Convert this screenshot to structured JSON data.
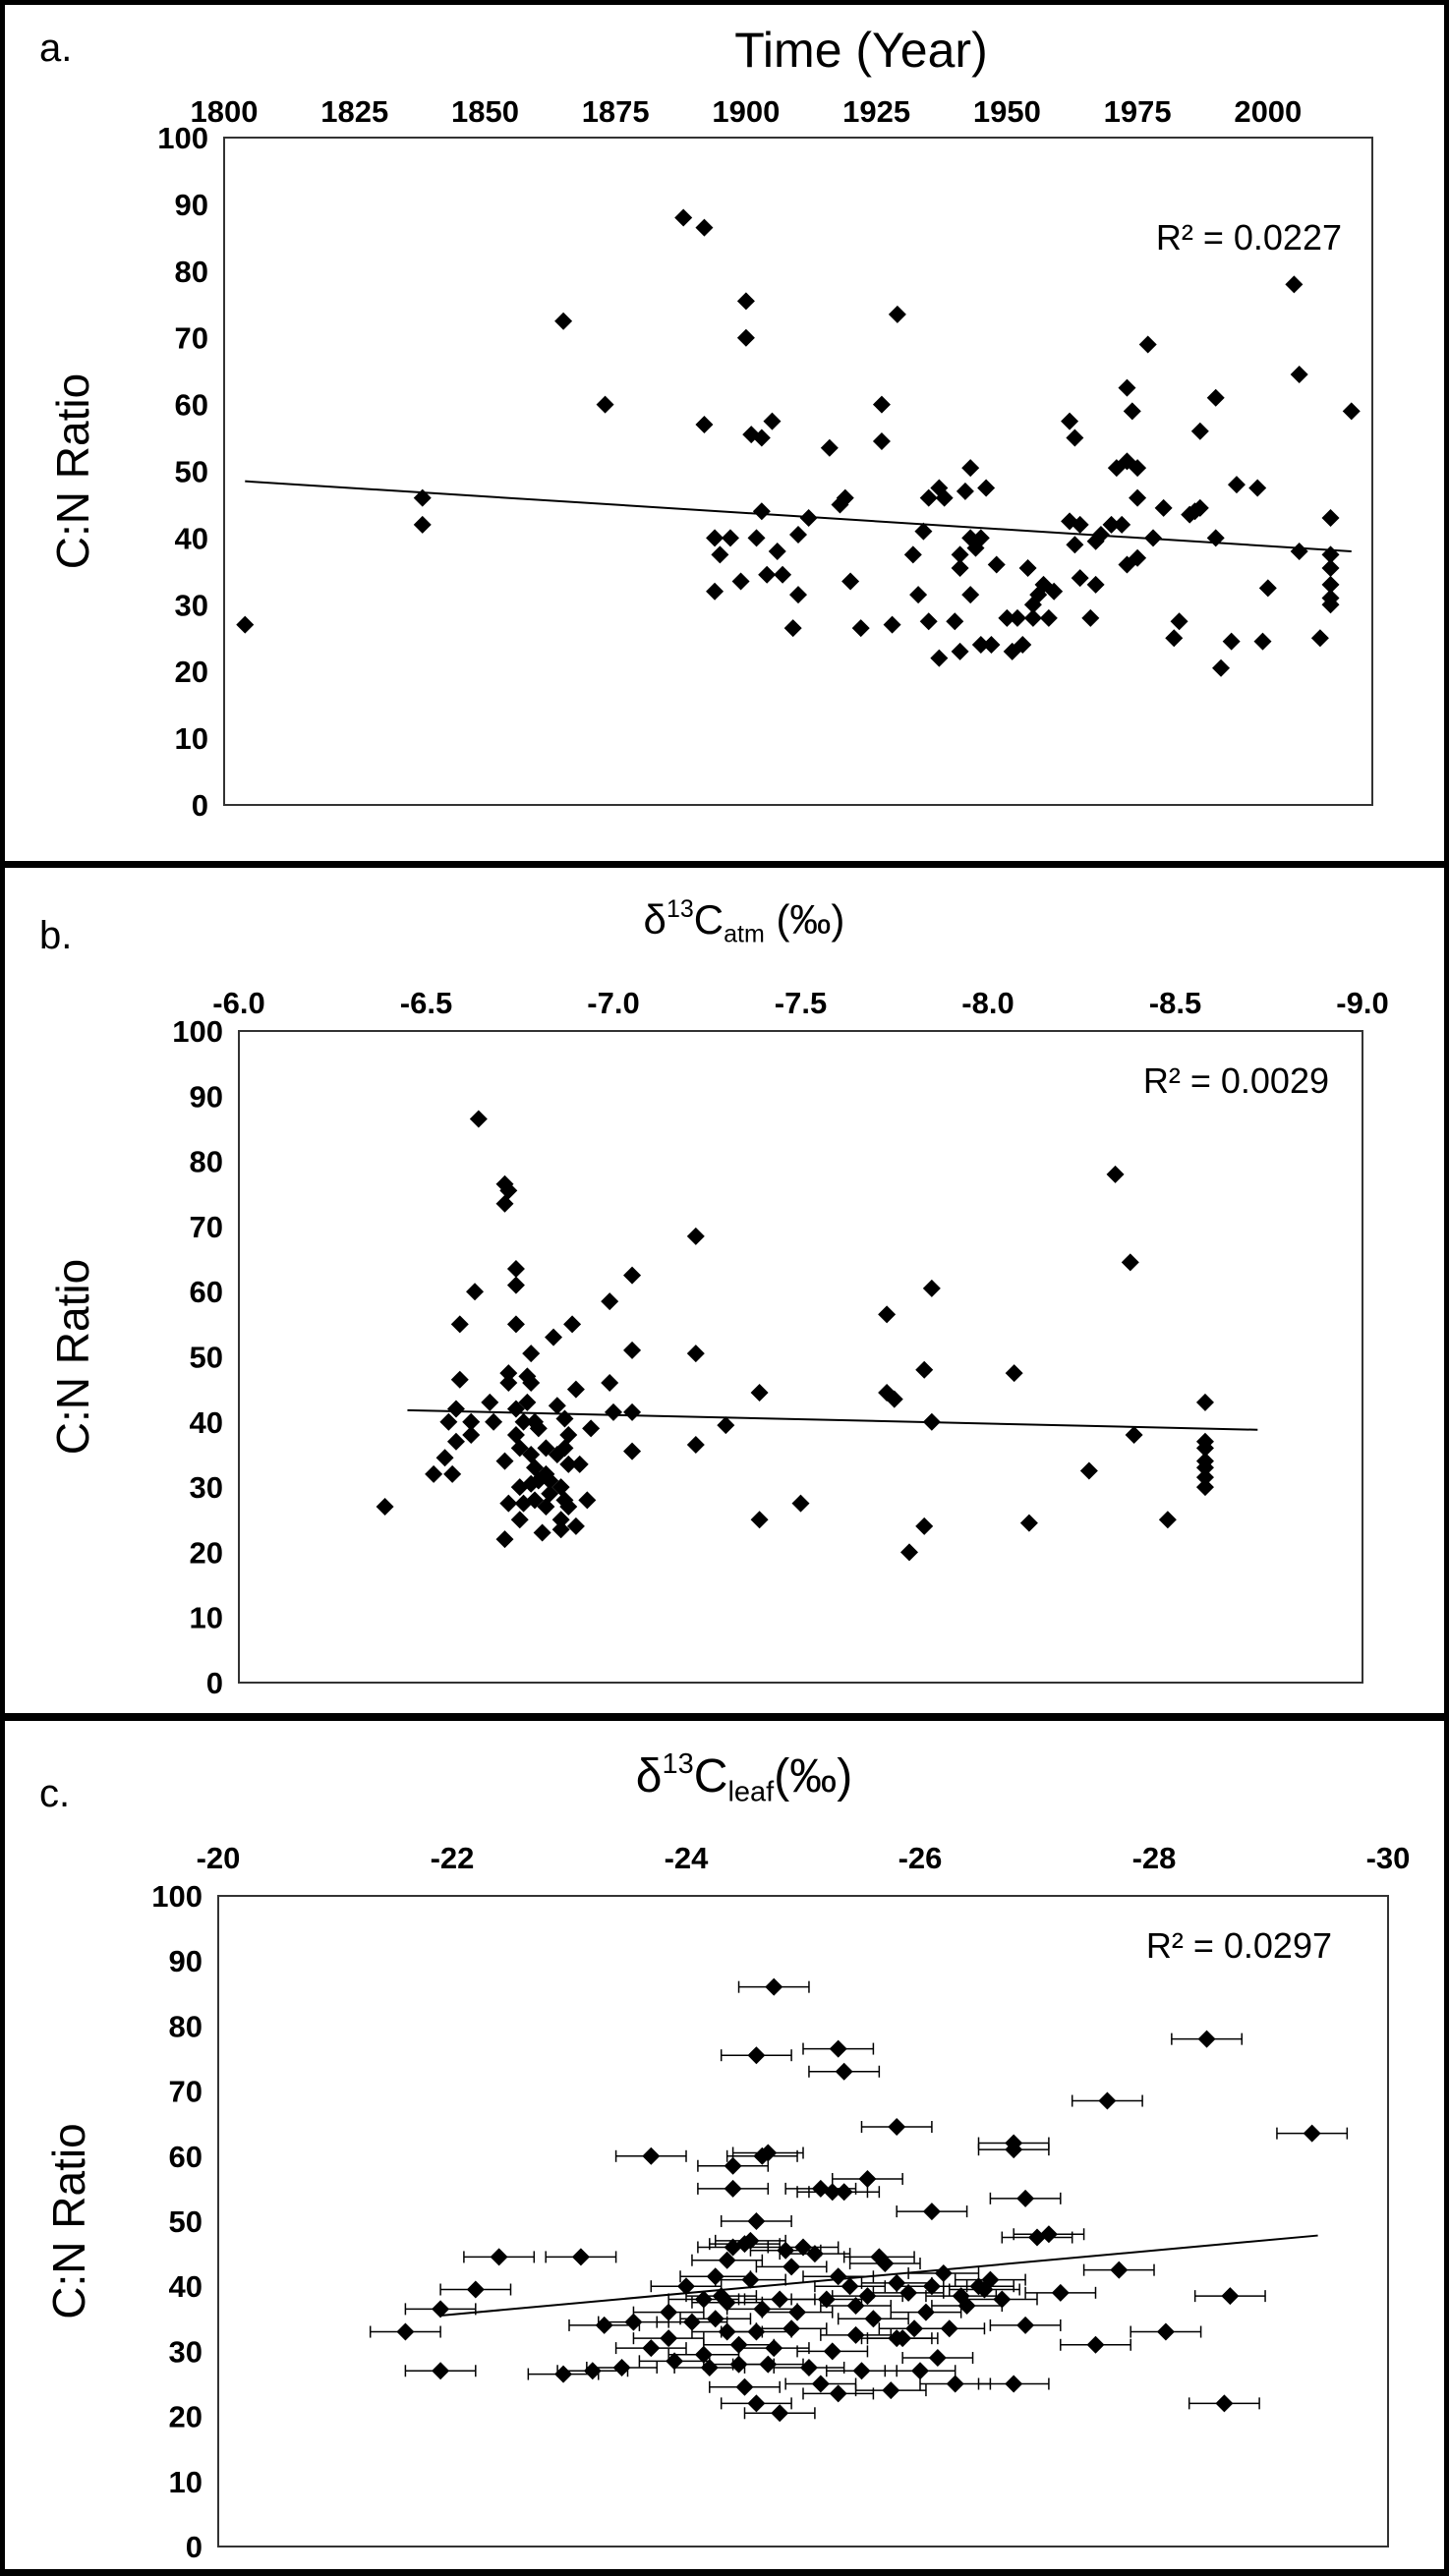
{
  "chart_data": [
    {
      "type": "scatter",
      "panel_label": "a.",
      "title": "Time (Year)",
      "xlabel": "",
      "ylabel": "C:N Ratio",
      "xlim": [
        1800,
        2020
      ],
      "ylim": [
        0,
        100
      ],
      "x_ticks": [
        "1800",
        "1825",
        "1850",
        "1875",
        "1900",
        "1925",
        "1950",
        "1975",
        "2000"
      ],
      "y_ticks": [
        "0",
        "10",
        "20",
        "30",
        "40",
        "50",
        "60",
        "70",
        "80",
        "90",
        "100"
      ],
      "axis_position": "top",
      "grid": false,
      "trendline": {
        "x": [
          1804,
          2016
        ],
        "y": [
          48.5,
          38.0
        ]
      },
      "r2": "R² = 0.0227",
      "points": [
        [
          1804,
          27
        ],
        [
          1838,
          46
        ],
        [
          1838,
          42
        ],
        [
          1865,
          72.5
        ],
        [
          1873,
          60
        ],
        [
          1888,
          88
        ],
        [
          1892,
          86.5
        ],
        [
          1892,
          57
        ],
        [
          1894,
          32
        ],
        [
          1895,
          37.5
        ],
        [
          1894,
          40
        ],
        [
          1897,
          40
        ],
        [
          1899,
          33.5
        ],
        [
          1900,
          75.5
        ],
        [
          1900,
          70
        ],
        [
          1901,
          55.5
        ],
        [
          1902,
          40
        ],
        [
          1903,
          55
        ],
        [
          1903,
          44
        ],
        [
          1904,
          34.5
        ],
        [
          1905,
          57.5
        ],
        [
          1906,
          38
        ],
        [
          1907,
          34.5
        ],
        [
          1909,
          26.5
        ],
        [
          1910,
          31.5
        ],
        [
          1910,
          40.5
        ],
        [
          1912,
          43
        ],
        [
          1916,
          53.5
        ],
        [
          1918,
          45
        ],
        [
          1919,
          46
        ],
        [
          1920,
          33.5
        ],
        [
          1922,
          26.5
        ],
        [
          1926,
          54.5
        ],
        [
          1926,
          60
        ],
        [
          1928,
          27
        ],
        [
          1929,
          73.5
        ],
        [
          1932,
          37.5
        ],
        [
          1933,
          31.5
        ],
        [
          1934,
          41
        ],
        [
          1935,
          27.5
        ],
        [
          1935,
          46
        ],
        [
          1937,
          47.5
        ],
        [
          1937,
          22
        ],
        [
          1938,
          46
        ],
        [
          1940,
          27.5
        ],
        [
          1941,
          37.5
        ],
        [
          1941,
          35.5
        ],
        [
          1941,
          23
        ],
        [
          1942,
          47
        ],
        [
          1943,
          40
        ],
        [
          1943,
          31.5
        ],
        [
          1943,
          50.5
        ],
        [
          1944,
          38.5
        ],
        [
          1945,
          24
        ],
        [
          1945,
          40
        ],
        [
          1946,
          47.5
        ],
        [
          1947,
          24
        ],
        [
          1948,
          36
        ],
        [
          1950,
          28
        ],
        [
          1951,
          23
        ],
        [
          1952,
          28
        ],
        [
          1953,
          24
        ],
        [
          1954,
          35.5
        ],
        [
          1955,
          28
        ],
        [
          1955,
          30
        ],
        [
          1956,
          31.5
        ],
        [
          1957,
          33
        ],
        [
          1958,
          28
        ],
        [
          1959,
          32
        ],
        [
          1962,
          57.5
        ],
        [
          1962,
          42.5
        ],
        [
          1963,
          55
        ],
        [
          1963,
          39
        ],
        [
          1964,
          34
        ],
        [
          1964,
          42
        ],
        [
          1966,
          28
        ],
        [
          1967,
          33
        ],
        [
          1967,
          39.5
        ],
        [
          1968,
          40.5
        ],
        [
          1970,
          42
        ],
        [
          1971,
          50.5
        ],
        [
          1972,
          42
        ],
        [
          1973,
          62.5
        ],
        [
          1973,
          51.5
        ],
        [
          1973,
          36
        ],
        [
          1974,
          59
        ],
        [
          1975,
          50.5
        ],
        [
          1975,
          46
        ],
        [
          1975,
          37
        ],
        [
          1977,
          69
        ],
        [
          1978,
          40
        ],
        [
          1980,
          44.5
        ],
        [
          1982,
          25
        ],
        [
          1983,
          27.5
        ],
        [
          1985,
          43.5
        ],
        [
          1986,
          44
        ],
        [
          1987,
          56
        ],
        [
          1987,
          44.5
        ],
        [
          1990,
          61
        ],
        [
          1990,
          40
        ],
        [
          1991,
          20.5
        ],
        [
          1993,
          24.5
        ],
        [
          1994,
          48
        ],
        [
          1998,
          47.5
        ],
        [
          1999,
          24.5
        ],
        [
          2000,
          32.5
        ],
        [
          2005,
          78
        ],
        [
          2006,
          64.5
        ],
        [
          2006,
          38
        ],
        [
          2010,
          25
        ],
        [
          2012,
          43
        ],
        [
          2012,
          37.5
        ],
        [
          2012,
          35.5
        ],
        [
          2012,
          33
        ],
        [
          2012,
          31
        ],
        [
          2012,
          30
        ],
        [
          2016,
          59
        ]
      ]
    },
    {
      "type": "scatter",
      "panel_label": "b.",
      "title_main": "δ",
      "title_sup": "13",
      "title_c": "C",
      "title_sub": "atm",
      "title_tail": " (‰)",
      "xlabel": "",
      "ylabel": "C:N Ratio",
      "xlim": [
        -6.0,
        -9.0
      ],
      "ylim": [
        0,
        100
      ],
      "x_ticks": [
        "-6.0",
        "-6.5",
        "-7.0",
        "-7.5",
        "-8.0",
        "-8.5",
        "-9.0"
      ],
      "y_ticks": [
        "0",
        "10",
        "20",
        "30",
        "40",
        "50",
        "60",
        "70",
        "80",
        "90",
        "100"
      ],
      "axis_position": "top",
      "grid": false,
      "trendline": {
        "x": [
          -6.45,
          -8.72
        ],
        "y": [
          41.8,
          38.8
        ]
      },
      "r2": "R² = 0.0029",
      "points": [
        [
          -6.39,
          27
        ],
        [
          -6.52,
          32
        ],
        [
          -6.57,
          32
        ],
        [
          -6.55,
          34.5
        ],
        [
          -6.56,
          40
        ],
        [
          -6.58,
          37
        ],
        [
          -6.58,
          42
        ],
        [
          -6.59,
          46.5
        ],
        [
          -6.59,
          55
        ],
        [
          -6.62,
          40
        ],
        [
          -6.64,
          86.5
        ],
        [
          -6.63,
          60
        ],
        [
          -6.62,
          38
        ],
        [
          -6.67,
          43
        ],
        [
          -6.68,
          40
        ],
        [
          -6.71,
          76.5
        ],
        [
          -6.71,
          73.5
        ],
        [
          -6.72,
          75.5
        ],
        [
          -6.72,
          47.5
        ],
        [
          -6.72,
          46
        ],
        [
          -6.71,
          34
        ],
        [
          -6.72,
          27.5
        ],
        [
          -6.71,
          22
        ],
        [
          -6.74,
          63.5
        ],
        [
          -6.74,
          61
        ],
        [
          -6.74,
          55
        ],
        [
          -6.74,
          42
        ],
        [
          -6.74,
          38
        ],
        [
          -6.75,
          36
        ],
        [
          -6.75,
          30
        ],
        [
          -6.75,
          25
        ],
        [
          -6.76,
          40
        ],
        [
          -6.76,
          27.5
        ],
        [
          -6.77,
          43
        ],
        [
          -6.77,
          47
        ],
        [
          -6.78,
          50.5
        ],
        [
          -6.78,
          46
        ],
        [
          -6.78,
          35
        ],
        [
          -6.78,
          30.5
        ],
        [
          -6.79,
          40
        ],
        [
          -6.79,
          33
        ],
        [
          -6.79,
          28
        ],
        [
          -6.8,
          39
        ],
        [
          -6.8,
          31
        ],
        [
          -6.81,
          23
        ],
        [
          -6.82,
          27
        ],
        [
          -6.82,
          36
        ],
        [
          -6.82,
          32
        ],
        [
          -6.83,
          31
        ],
        [
          -6.83,
          29
        ],
        [
          -6.84,
          53
        ],
        [
          -6.85,
          42.5
        ],
        [
          -6.85,
          35
        ],
        [
          -6.86,
          25
        ],
        [
          -6.86,
          30
        ],
        [
          -6.86,
          23.5
        ],
        [
          -6.87,
          28
        ],
        [
          -6.87,
          36
        ],
        [
          -6.87,
          40.5
        ],
        [
          -6.88,
          33.5
        ],
        [
          -6.88,
          38
        ],
        [
          -6.88,
          27
        ],
        [
          -6.89,
          55
        ],
        [
          -6.9,
          24
        ],
        [
          -6.9,
          45
        ],
        [
          -6.91,
          33.5
        ],
        [
          -6.93,
          28
        ],
        [
          -6.94,
          39
        ],
        [
          -6.99,
          46
        ],
        [
          -6.99,
          58.5
        ],
        [
          -7.0,
          41.5
        ],
        [
          -7.05,
          62.5
        ],
        [
          -7.05,
          51
        ],
        [
          -7.05,
          41.5
        ],
        [
          -7.05,
          35.5
        ],
        [
          -7.22,
          68.5
        ],
        [
          -7.22,
          50.5
        ],
        [
          -7.22,
          36.5
        ],
        [
          -7.3,
          39.5
        ],
        [
          -7.39,
          44.5
        ],
        [
          -7.39,
          25
        ],
        [
          -7.5,
          27.5
        ],
        [
          -7.73,
          56.5
        ],
        [
          -7.73,
          44.5
        ],
        [
          -7.75,
          43.5
        ],
        [
          -7.79,
          20
        ],
        [
          -7.83,
          48
        ],
        [
          -7.83,
          24
        ],
        [
          -7.85,
          60.5
        ],
        [
          -7.85,
          40
        ],
        [
          -8.07,
          47.5
        ],
        [
          -8.11,
          24.5
        ],
        [
          -8.27,
          32.5
        ],
        [
          -8.34,
          78
        ],
        [
          -8.38,
          64.5
        ],
        [
          -8.39,
          38
        ],
        [
          -8.48,
          25
        ],
        [
          -8.58,
          43
        ],
        [
          -8.58,
          37
        ],
        [
          -8.58,
          36
        ],
        [
          -8.58,
          34
        ],
        [
          -8.58,
          31.5
        ],
        [
          -8.58,
          30
        ],
        [
          -8.58,
          33
        ]
      ]
    },
    {
      "type": "scatter",
      "panel_label": "c.",
      "title_main": "δ",
      "title_sup": "13",
      "title_c": "C",
      "title_sub": "leaf",
      "title_tail": "(‰)",
      "xlabel": "",
      "ylabel": "C:N Ratio",
      "xlim": [
        -20,
        -30
      ],
      "ylim": [
        0,
        100
      ],
      "x_ticks": [
        "-20",
        "-22",
        "-24",
        "-26",
        "-28",
        "-30"
      ],
      "y_ticks": [
        "0",
        "10",
        "20",
        "30",
        "40",
        "50",
        "60",
        "70",
        "80",
        "90",
        "100"
      ],
      "axis_position": "top",
      "grid": false,
      "x_error": 0.3,
      "trendline": {
        "x": [
          -21.9,
          -29.4
        ],
        "y": [
          35.5,
          47.8
        ]
      },
      "r2": "R² = 0.0297",
      "points": [
        [
          -24.75,
          86
        ],
        [
          -25.3,
          76.5
        ],
        [
          -24.6,
          75.5
        ],
        [
          -25.35,
          73
        ],
        [
          -28.45,
          78
        ],
        [
          -27.6,
          68.5
        ],
        [
          -29.35,
          63.5
        ],
        [
          -25.8,
          64.5
        ],
        [
          -26.8,
          62
        ],
        [
          -26.8,
          61
        ],
        [
          -23.7,
          60
        ],
        [
          -24.7,
          60.5
        ],
        [
          -24.65,
          60
        ],
        [
          -24.4,
          58.5
        ],
        [
          -24.4,
          55
        ],
        [
          -25.15,
          55
        ],
        [
          -25.25,
          54.5
        ],
        [
          -25.35,
          54.5
        ],
        [
          -25.55,
          56.5
        ],
        [
          -26.9,
          53.5
        ],
        [
          -26.1,
          51.5
        ],
        [
          -24.6,
          50
        ],
        [
          -27.0,
          47.5
        ],
        [
          -27.1,
          48
        ],
        [
          -23.1,
          44.5
        ],
        [
          -22.2,
          39.5
        ],
        [
          -21.9,
          36.5
        ],
        [
          -21.6,
          33
        ],
        [
          -21.9,
          27
        ],
        [
          -22.4,
          44.5
        ],
        [
          -23.3,
          34
        ],
        [
          -22.95,
          26.5
        ],
        [
          -23.2,
          27
        ],
        [
          -23.45,
          27.5
        ],
        [
          -23.7,
          30.5
        ],
        [
          -23.85,
          36
        ],
        [
          -23.85,
          32
        ],
        [
          -24.0,
          40
        ],
        [
          -24.15,
          29.5
        ],
        [
          -24.25,
          35
        ],
        [
          -24.3,
          38.5
        ],
        [
          -24.35,
          44
        ],
        [
          -24.4,
          46
        ],
        [
          -24.5,
          46.5
        ],
        [
          -24.55,
          47
        ],
        [
          -24.7,
          28
        ],
        [
          -24.6,
          22
        ],
        [
          -24.8,
          20.5
        ],
        [
          -24.5,
          24.5
        ],
        [
          -24.6,
          33
        ],
        [
          -24.8,
          38
        ],
        [
          -24.9,
          43
        ],
        [
          -25.0,
          46
        ],
        [
          -25.1,
          45
        ],
        [
          -25.2,
          38
        ],
        [
          -25.25,
          30
        ],
        [
          -25.3,
          23.5
        ],
        [
          -25.4,
          40
        ],
        [
          -25.45,
          32.5
        ],
        [
          -25.5,
          27
        ],
        [
          -25.6,
          35
        ],
        [
          -25.7,
          43.5
        ],
        [
          -25.75,
          24
        ],
        [
          -25.8,
          32
        ],
        [
          -25.9,
          39
        ],
        [
          -26.0,
          27
        ],
        [
          -26.05,
          36
        ],
        [
          -26.1,
          40
        ],
        [
          -26.2,
          42
        ],
        [
          -26.25,
          33.5
        ],
        [
          -26.3,
          25
        ],
        [
          -26.4,
          37
        ],
        [
          -26.5,
          40
        ],
        [
          -26.6,
          41
        ],
        [
          -26.8,
          25
        ],
        [
          -26.9,
          34
        ],
        [
          -27.2,
          39
        ],
        [
          -27.5,
          31
        ],
        [
          -27.7,
          42.5
        ],
        [
          -28.1,
          33
        ],
        [
          -28.65,
          38.5
        ],
        [
          -28.6,
          22
        ],
        [
          -24.15,
          38
        ],
        [
          -24.35,
          33
        ],
        [
          -24.55,
          41
        ],
        [
          -24.65,
          36.5
        ],
        [
          -24.9,
          33.5
        ],
        [
          -25.05,
          27.5
        ],
        [
          -25.3,
          41.5
        ],
        [
          -25.55,
          38.5
        ],
        [
          -25.8,
          40.5
        ],
        [
          -26.15,
          29
        ],
        [
          -24.25,
          41.5
        ],
        [
          -24.05,
          34.5
        ],
        [
          -24.85,
          45.5
        ],
        [
          -25.65,
          44.5
        ],
        [
          -26.55,
          39.5
        ],
        [
          -25.15,
          25
        ],
        [
          -24.45,
          28
        ],
        [
          -23.9,
          28.5
        ],
        [
          -24.2,
          27.5
        ],
        [
          -24.75,
          30.5
        ],
        [
          -25.45,
          37
        ],
        [
          -26.35,
          38.5
        ],
        [
          -25.95,
          33.5
        ],
        [
          -24.95,
          36
        ],
        [
          -23.55,
          34.5
        ],
        [
          -24.35,
          37.5
        ],
        [
          -24.45,
          31
        ],
        [
          -25.85,
          32
        ],
        [
          -26.7,
          38
        ]
      ]
    }
  ]
}
